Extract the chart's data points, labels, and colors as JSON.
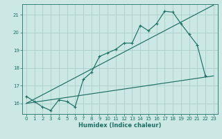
{
  "background_color": "#cce8e4",
  "grid_color": "#aaceca",
  "line_color": "#1e6e64",
  "xlabel": "Humidex (Indice chaleur)",
  "xlim": [
    -0.5,
    23.5
  ],
  "ylim": [
    15.4,
    21.6
  ],
  "yticks": [
    16,
    17,
    18,
    19,
    20,
    21
  ],
  "xticks": [
    0,
    1,
    2,
    3,
    4,
    5,
    6,
    7,
    8,
    9,
    10,
    11,
    12,
    13,
    14,
    15,
    16,
    17,
    18,
    19,
    20,
    21,
    22,
    23
  ],
  "series1_x": [
    0,
    1,
    2,
    3,
    4,
    5,
    6,
    7,
    8,
    9,
    10,
    11,
    12,
    13,
    14,
    15,
    16,
    17,
    18,
    19,
    20,
    21,
    22
  ],
  "series1_y": [
    16.4,
    16.1,
    15.8,
    15.6,
    16.2,
    16.1,
    15.8,
    17.35,
    17.75,
    18.65,
    18.85,
    19.05,
    19.4,
    19.4,
    20.4,
    20.1,
    20.5,
    21.2,
    21.15,
    20.5,
    19.9,
    19.3,
    17.55
  ],
  "series2_x": [
    0,
    23
  ],
  "series2_y": [
    16.0,
    17.55
  ],
  "series3_x": [
    0,
    23
  ],
  "series3_y": [
    16.0,
    21.55
  ],
  "title_fontsize": 7,
  "tick_fontsize": 5,
  "xlabel_fontsize": 6,
  "linewidth": 0.85,
  "markersize": 3.5,
  "markeredgewidth": 0.85
}
